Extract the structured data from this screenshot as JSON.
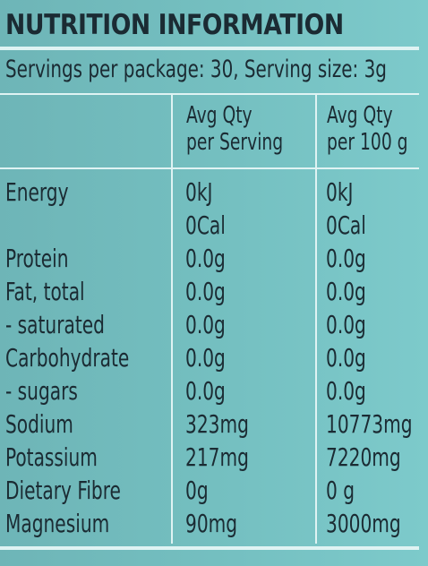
{
  "panel": {
    "title": "NUTRITION INFORMATION",
    "servings_line": "Servings per package: 30, Serving size: 3g",
    "columns": {
      "per_serving_line1": "Avg Qty",
      "per_serving_line2": "per Serving",
      "per_100g_line1": "Avg Qty",
      "per_100g_line2": "per 100 g"
    },
    "rows": [
      {
        "name": "Energy",
        "per_serving": "0kJ",
        "per_100g": "0kJ"
      },
      {
        "name": "",
        "per_serving": "0Cal",
        "per_100g": "0Cal"
      },
      {
        "name": "Protein",
        "per_serving": "0.0g",
        "per_100g": "0.0g"
      },
      {
        "name": "Fat, total",
        "per_serving": "0.0g",
        "per_100g": "0.0g"
      },
      {
        "name": "- saturated",
        "per_serving": "0.0g",
        "per_100g": "0.0g"
      },
      {
        "name": "Carbohydrate",
        "per_serving": "0.0g",
        "per_100g": "0.0g"
      },
      {
        "name": "- sugars",
        "per_serving": "0.0g",
        "per_100g": "0.0g"
      },
      {
        "name": "Sodium",
        "per_serving": "323mg",
        "per_100g": "10773mg"
      },
      {
        "name": "Potassium",
        "per_serving": "217mg",
        "per_100g": "7220mg"
      },
      {
        "name": "Dietary Fibre",
        "per_serving": "0g",
        "per_100g": "0 g"
      },
      {
        "name": "Magnesium",
        "per_serving": "90mg",
        "per_100g": "3000mg"
      }
    ]
  },
  "colors": {
    "background": "#74bfc0",
    "text": "#1b2b33",
    "rule": "#dff3f3"
  }
}
